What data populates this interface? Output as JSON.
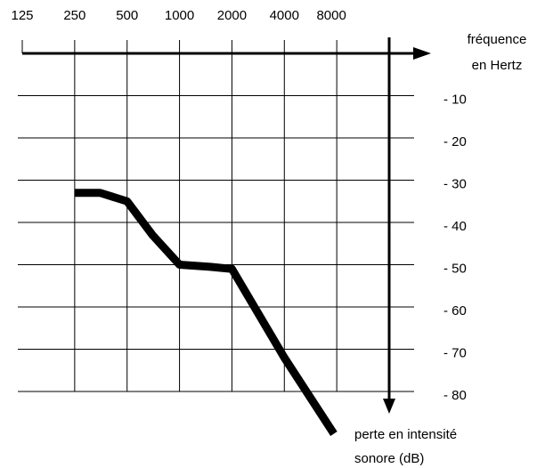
{
  "chart_data": {
    "type": "line",
    "x_label": [
      "fréquence",
      "en Hertz"
    ],
    "y_label": [
      "perte en intensité",
      "sonore (dB)"
    ],
    "xscale": "log",
    "xlim": [
      125,
      16000
    ],
    "xticks": [
      125,
      250,
      500,
      1000,
      2000,
      4000,
      8000
    ],
    "ylim": [
      0,
      -80
    ],
    "yticks": [
      {
        "value": -10,
        "label": "- 10"
      },
      {
        "value": -20,
        "label": "- 20"
      },
      {
        "value": -30,
        "label": "- 30"
      },
      {
        "value": -40,
        "label": "- 40"
      },
      {
        "value": -50,
        "label": "- 50"
      },
      {
        "value": -60,
        "label": "- 60"
      },
      {
        "value": -70,
        "label": "- 70"
      },
      {
        "value": -80,
        "label": "- 80"
      }
    ],
    "grid": true,
    "series": [
      {
        "color": "#000000",
        "x": [
          250,
          350,
          500,
          700,
          1000,
          1500,
          2000,
          4000,
          7700
        ],
        "values": [
          -33,
          -33,
          -35,
          -43,
          -50,
          -50.5,
          -51,
          -72,
          -90
        ]
      }
    ]
  }
}
